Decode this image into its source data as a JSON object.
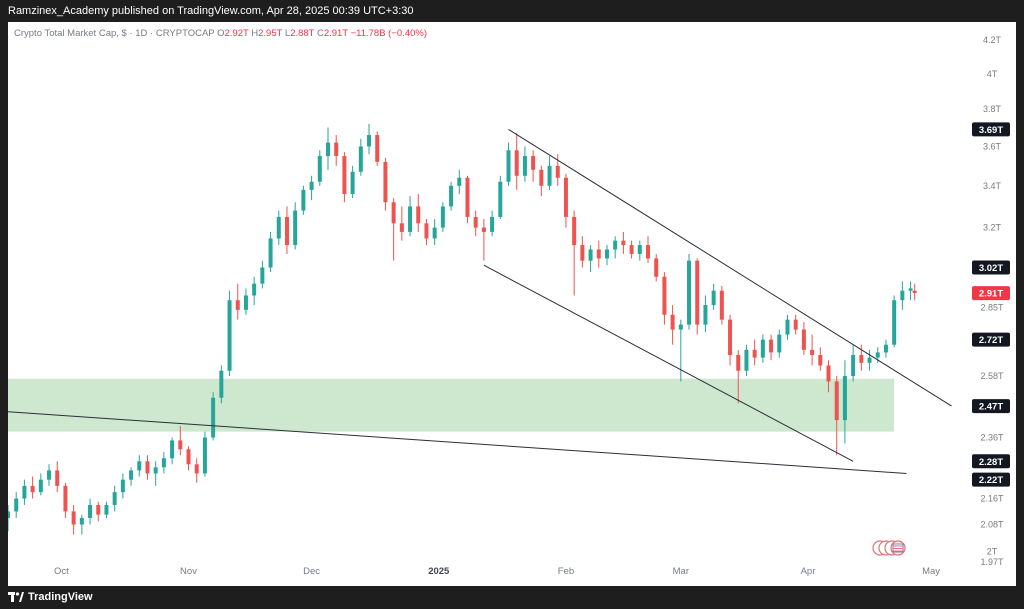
{
  "header": {
    "publisher_line": "Ramzinex_Academy published on TradingView.com, Apr 28, 2025 00:39 UTC+3:30"
  },
  "legend": {
    "symbol": "Crypto Total Market Cap, $ · 1D · CRYPTOCAP",
    "o_label": "O",
    "o_value": "2.92T",
    "h_label": "H",
    "h_value": "2.95T",
    "l_label": "L",
    "l_value": "2.88T",
    "c_label": "C",
    "c_value": "2.91T",
    "change": "−11.78B (−0.40%)"
  },
  "footer": {
    "brand": "TradingView"
  },
  "colors": {
    "up": "#26a69a",
    "down": "#ef5350",
    "zone": "#c8e6c9",
    "line": "#2a2e39",
    "axis_text": "#787b86",
    "price_tag_bg": "#131722",
    "last_price_bg": "#f23645"
  },
  "chart_data": {
    "type": "candlestick",
    "title": "Crypto Total Market Cap, $ · 1D · CRYPTOCAP",
    "y_scale": "log",
    "ylim": [
      1.97,
      4.25
    ],
    "y_ticks": [
      {
        "label": "4.2T",
        "value": 4.2
      },
      {
        "label": "4T",
        "value": 4.0
      },
      {
        "label": "3.8T",
        "value": 3.8
      },
      {
        "label": "3.6T",
        "value": 3.6
      },
      {
        "label": "3.4T",
        "value": 3.4
      },
      {
        "label": "3.2T",
        "value": 3.2
      },
      {
        "label": "2.85T",
        "value": 2.85
      },
      {
        "label": "2.58T",
        "value": 2.58
      },
      {
        "label": "2.36T",
        "value": 2.36
      },
      {
        "label": "2.16T",
        "value": 2.16
      },
      {
        "label": "2.08T",
        "value": 2.08
      },
      {
        "label": "2T",
        "value": 2.0
      },
      {
        "label": "1.97T",
        "value": 1.97
      }
    ],
    "price_tags": [
      {
        "label": "3.69T",
        "value": 3.69,
        "kind": "level"
      },
      {
        "label": "3.02T",
        "value": 3.02,
        "kind": "level"
      },
      {
        "label": "2.91T",
        "value": 2.91,
        "kind": "last"
      },
      {
        "label": "2.72T",
        "value": 2.72,
        "kind": "level"
      },
      {
        "label": "2.47T",
        "value": 2.47,
        "kind": "level"
      },
      {
        "label": "2.28T",
        "value": 2.28,
        "kind": "level"
      },
      {
        "label": "2.22T",
        "value": 2.22,
        "kind": "level"
      }
    ],
    "x_range": [
      "2024-09-18",
      "2025-05-10"
    ],
    "x_ticks": [
      {
        "label": "Oct",
        "date": "2024-10-01"
      },
      {
        "label": "Nov",
        "date": "2024-11-01"
      },
      {
        "label": "Dec",
        "date": "2024-12-01"
      },
      {
        "label": "2025",
        "date": "2025-01-01"
      },
      {
        "label": "Feb",
        "date": "2025-02-01"
      },
      {
        "label": "Mar",
        "date": "2025-03-01"
      },
      {
        "label": "Apr",
        "date": "2025-04-01"
      },
      {
        "label": "May",
        "date": "2025-05-01"
      }
    ],
    "zone": {
      "from_date": "2024-09-18",
      "to_date": "2025-04-22",
      "low": 2.38,
      "high": 2.57
    },
    "lines": [
      {
        "from": {
          "date": "2024-09-18",
          "value": 2.45
        },
        "to": {
          "date": "2025-04-25",
          "value": 2.24
        }
      },
      {
        "from": {
          "date": "2025-01-18",
          "value": 3.69
        },
        "to": {
          "date": "2025-05-06",
          "value": 2.47
        }
      },
      {
        "from": {
          "date": "2025-01-12",
          "value": 3.03
        },
        "to": {
          "date": "2025-04-12",
          "value": 2.28
        }
      }
    ],
    "candles": [
      {
        "date": "2024-09-18",
        "o": 2.1,
        "h": 2.14,
        "l": 2.06,
        "c": 2.12
      },
      {
        "date": "2024-09-20",
        "o": 2.12,
        "h": 2.18,
        "l": 2.1,
        "c": 2.16
      },
      {
        "date": "2024-09-22",
        "o": 2.16,
        "h": 2.22,
        "l": 2.14,
        "c": 2.2
      },
      {
        "date": "2024-09-24",
        "o": 2.2,
        "h": 2.23,
        "l": 2.16,
        "c": 2.18
      },
      {
        "date": "2024-09-26",
        "o": 2.18,
        "h": 2.24,
        "l": 2.17,
        "c": 2.22
      },
      {
        "date": "2024-09-28",
        "o": 2.22,
        "h": 2.27,
        "l": 2.2,
        "c": 2.25
      },
      {
        "date": "2024-09-30",
        "o": 2.25,
        "h": 2.28,
        "l": 2.18,
        "c": 2.2
      },
      {
        "date": "2024-10-02",
        "o": 2.2,
        "h": 2.21,
        "l": 2.1,
        "c": 2.12
      },
      {
        "date": "2024-10-04",
        "o": 2.12,
        "h": 2.14,
        "l": 2.05,
        "c": 2.08
      },
      {
        "date": "2024-10-06",
        "o": 2.08,
        "h": 2.11,
        "l": 2.05,
        "c": 2.1
      },
      {
        "date": "2024-10-08",
        "o": 2.1,
        "h": 2.16,
        "l": 2.08,
        "c": 2.14
      },
      {
        "date": "2024-10-10",
        "o": 2.14,
        "h": 2.15,
        "l": 2.09,
        "c": 2.11
      },
      {
        "date": "2024-10-12",
        "o": 2.11,
        "h": 2.15,
        "l": 2.1,
        "c": 2.14
      },
      {
        "date": "2024-10-14",
        "o": 2.14,
        "h": 2.2,
        "l": 2.12,
        "c": 2.18
      },
      {
        "date": "2024-10-16",
        "o": 2.18,
        "h": 2.24,
        "l": 2.16,
        "c": 2.22
      },
      {
        "date": "2024-10-18",
        "o": 2.22,
        "h": 2.26,
        "l": 2.2,
        "c": 2.25
      },
      {
        "date": "2024-10-20",
        "o": 2.25,
        "h": 2.3,
        "l": 2.23,
        "c": 2.28
      },
      {
        "date": "2024-10-22",
        "o": 2.28,
        "h": 2.3,
        "l": 2.22,
        "c": 2.24
      },
      {
        "date": "2024-10-24",
        "o": 2.24,
        "h": 2.28,
        "l": 2.2,
        "c": 2.26
      },
      {
        "date": "2024-10-26",
        "o": 2.26,
        "h": 2.31,
        "l": 2.24,
        "c": 2.29
      },
      {
        "date": "2024-10-28",
        "o": 2.29,
        "h": 2.36,
        "l": 2.27,
        "c": 2.35
      },
      {
        "date": "2024-10-30",
        "o": 2.35,
        "h": 2.4,
        "l": 2.3,
        "c": 2.32
      },
      {
        "date": "2024-11-01",
        "o": 2.32,
        "h": 2.33,
        "l": 2.25,
        "c": 2.27
      },
      {
        "date": "2024-11-03",
        "o": 2.27,
        "h": 2.29,
        "l": 2.21,
        "c": 2.24
      },
      {
        "date": "2024-11-05",
        "o": 2.24,
        "h": 2.38,
        "l": 2.23,
        "c": 2.36
      },
      {
        "date": "2024-11-07",
        "o": 2.36,
        "h": 2.52,
        "l": 2.35,
        "c": 2.5
      },
      {
        "date": "2024-11-09",
        "o": 2.5,
        "h": 2.62,
        "l": 2.48,
        "c": 2.6
      },
      {
        "date": "2024-11-11",
        "o": 2.6,
        "h": 2.92,
        "l": 2.58,
        "c": 2.88
      },
      {
        "date": "2024-11-13",
        "o": 2.88,
        "h": 2.95,
        "l": 2.8,
        "c": 2.84
      },
      {
        "date": "2024-11-15",
        "o": 2.84,
        "h": 2.93,
        "l": 2.82,
        "c": 2.9
      },
      {
        "date": "2024-11-17",
        "o": 2.9,
        "h": 2.98,
        "l": 2.86,
        "c": 2.95
      },
      {
        "date": "2024-11-19",
        "o": 2.95,
        "h": 3.05,
        "l": 2.93,
        "c": 3.02
      },
      {
        "date": "2024-11-21",
        "o": 3.02,
        "h": 3.18,
        "l": 3.0,
        "c": 3.15
      },
      {
        "date": "2024-11-23",
        "o": 3.15,
        "h": 3.28,
        "l": 3.12,
        "c": 3.25
      },
      {
        "date": "2024-11-25",
        "o": 3.25,
        "h": 3.3,
        "l": 3.08,
        "c": 3.12
      },
      {
        "date": "2024-11-27",
        "o": 3.12,
        "h": 3.32,
        "l": 3.1,
        "c": 3.28
      },
      {
        "date": "2024-11-29",
        "o": 3.28,
        "h": 3.4,
        "l": 3.26,
        "c": 3.38
      },
      {
        "date": "2024-12-01",
        "o": 3.38,
        "h": 3.45,
        "l": 3.33,
        "c": 3.42
      },
      {
        "date": "2024-12-03",
        "o": 3.42,
        "h": 3.58,
        "l": 3.4,
        "c": 3.55
      },
      {
        "date": "2024-12-05",
        "o": 3.55,
        "h": 3.7,
        "l": 3.48,
        "c": 3.62
      },
      {
        "date": "2024-12-07",
        "o": 3.62,
        "h": 3.66,
        "l": 3.5,
        "c": 3.55
      },
      {
        "date": "2024-12-09",
        "o": 3.55,
        "h": 3.57,
        "l": 3.32,
        "c": 3.36
      },
      {
        "date": "2024-12-11",
        "o": 3.36,
        "h": 3.5,
        "l": 3.34,
        "c": 3.47
      },
      {
        "date": "2024-12-13",
        "o": 3.47,
        "h": 3.64,
        "l": 3.45,
        "c": 3.6
      },
      {
        "date": "2024-12-15",
        "o": 3.6,
        "h": 3.72,
        "l": 3.56,
        "c": 3.66
      },
      {
        "date": "2024-12-17",
        "o": 3.66,
        "h": 3.68,
        "l": 3.5,
        "c": 3.52
      },
      {
        "date": "2024-12-19",
        "o": 3.52,
        "h": 3.54,
        "l": 3.28,
        "c": 3.32
      },
      {
        "date": "2024-12-21",
        "o": 3.32,
        "h": 3.34,
        "l": 3.05,
        "c": 3.22
      },
      {
        "date": "2024-12-23",
        "o": 3.22,
        "h": 3.3,
        "l": 3.14,
        "c": 3.18
      },
      {
        "date": "2024-12-25",
        "o": 3.18,
        "h": 3.35,
        "l": 3.16,
        "c": 3.3
      },
      {
        "date": "2024-12-27",
        "o": 3.3,
        "h": 3.36,
        "l": 3.18,
        "c": 3.22
      },
      {
        "date": "2024-12-29",
        "o": 3.22,
        "h": 3.24,
        "l": 3.12,
        "c": 3.15
      },
      {
        "date": "2024-12-31",
        "o": 3.15,
        "h": 3.24,
        "l": 3.12,
        "c": 3.2
      },
      {
        "date": "2025-01-02",
        "o": 3.2,
        "h": 3.32,
        "l": 3.18,
        "c": 3.3
      },
      {
        "date": "2025-01-04",
        "o": 3.3,
        "h": 3.42,
        "l": 3.28,
        "c": 3.4
      },
      {
        "date": "2025-01-06",
        "o": 3.4,
        "h": 3.48,
        "l": 3.36,
        "c": 3.44
      },
      {
        "date": "2025-01-08",
        "o": 3.44,
        "h": 3.45,
        "l": 3.22,
        "c": 3.25
      },
      {
        "date": "2025-01-10",
        "o": 3.25,
        "h": 3.28,
        "l": 3.16,
        "c": 3.2
      },
      {
        "date": "2025-01-12",
        "o": 3.2,
        "h": 3.24,
        "l": 3.05,
        "c": 3.18
      },
      {
        "date": "2025-01-14",
        "o": 3.18,
        "h": 3.28,
        "l": 3.16,
        "c": 3.25
      },
      {
        "date": "2025-01-16",
        "o": 3.25,
        "h": 3.45,
        "l": 3.24,
        "c": 3.42
      },
      {
        "date": "2025-01-18",
        "o": 3.42,
        "h": 3.62,
        "l": 3.4,
        "c": 3.58
      },
      {
        "date": "2025-01-20",
        "o": 3.58,
        "h": 3.67,
        "l": 3.38,
        "c": 3.45
      },
      {
        "date": "2025-01-22",
        "o": 3.45,
        "h": 3.6,
        "l": 3.42,
        "c": 3.55
      },
      {
        "date": "2025-01-24",
        "o": 3.55,
        "h": 3.58,
        "l": 3.42,
        "c": 3.48
      },
      {
        "date": "2025-01-26",
        "o": 3.48,
        "h": 3.5,
        "l": 3.35,
        "c": 3.4
      },
      {
        "date": "2025-01-28",
        "o": 3.4,
        "h": 3.55,
        "l": 3.38,
        "c": 3.5
      },
      {
        "date": "2025-01-30",
        "o": 3.5,
        "h": 3.56,
        "l": 3.4,
        "c": 3.44
      },
      {
        "date": "2025-02-01",
        "o": 3.44,
        "h": 3.46,
        "l": 3.2,
        "c": 3.25
      },
      {
        "date": "2025-02-03",
        "o": 3.25,
        "h": 3.28,
        "l": 2.9,
        "c": 3.12
      },
      {
        "date": "2025-02-05",
        "o": 3.12,
        "h": 3.16,
        "l": 3.02,
        "c": 3.05
      },
      {
        "date": "2025-02-07",
        "o": 3.05,
        "h": 3.12,
        "l": 3.0,
        "c": 3.1
      },
      {
        "date": "2025-02-09",
        "o": 3.1,
        "h": 3.14,
        "l": 3.02,
        "c": 3.06
      },
      {
        "date": "2025-02-11",
        "o": 3.06,
        "h": 3.12,
        "l": 3.03,
        "c": 3.1
      },
      {
        "date": "2025-02-13",
        "o": 3.1,
        "h": 3.16,
        "l": 3.06,
        "c": 3.14
      },
      {
        "date": "2025-02-15",
        "o": 3.14,
        "h": 3.18,
        "l": 3.08,
        "c": 3.12
      },
      {
        "date": "2025-02-17",
        "o": 3.12,
        "h": 3.14,
        "l": 3.06,
        "c": 3.08
      },
      {
        "date": "2025-02-19",
        "o": 3.08,
        "h": 3.14,
        "l": 3.05,
        "c": 3.12
      },
      {
        "date": "2025-02-21",
        "o": 3.12,
        "h": 3.16,
        "l": 3.04,
        "c": 3.06
      },
      {
        "date": "2025-02-23",
        "o": 3.06,
        "h": 3.08,
        "l": 2.96,
        "c": 2.98
      },
      {
        "date": "2025-02-25",
        "o": 2.98,
        "h": 3.0,
        "l": 2.78,
        "c": 2.82
      },
      {
        "date": "2025-02-27",
        "o": 2.82,
        "h": 2.86,
        "l": 2.7,
        "c": 2.76
      },
      {
        "date": "2025-03-01",
        "o": 2.76,
        "h": 2.8,
        "l": 2.56,
        "c": 2.78
      },
      {
        "date": "2025-03-03",
        "o": 2.78,
        "h": 3.08,
        "l": 2.76,
        "c": 3.05
      },
      {
        "date": "2025-03-05",
        "o": 3.05,
        "h": 3.06,
        "l": 2.74,
        "c": 2.78
      },
      {
        "date": "2025-03-07",
        "o": 2.78,
        "h": 2.9,
        "l": 2.75,
        "c": 2.86
      },
      {
        "date": "2025-03-09",
        "o": 2.86,
        "h": 2.95,
        "l": 2.84,
        "c": 2.92
      },
      {
        "date": "2025-03-11",
        "o": 2.92,
        "h": 2.94,
        "l": 2.78,
        "c": 2.8
      },
      {
        "date": "2025-03-13",
        "o": 2.8,
        "h": 2.82,
        "l": 2.62,
        "c": 2.66
      },
      {
        "date": "2025-03-15",
        "o": 2.66,
        "h": 2.68,
        "l": 2.48,
        "c": 2.6
      },
      {
        "date": "2025-03-17",
        "o": 2.6,
        "h": 2.7,
        "l": 2.58,
        "c": 2.68
      },
      {
        "date": "2025-03-19",
        "o": 2.68,
        "h": 2.72,
        "l": 2.62,
        "c": 2.65
      },
      {
        "date": "2025-03-21",
        "o": 2.65,
        "h": 2.74,
        "l": 2.63,
        "c": 2.72
      },
      {
        "date": "2025-03-23",
        "o": 2.72,
        "h": 2.74,
        "l": 2.64,
        "c": 2.67
      },
      {
        "date": "2025-03-25",
        "o": 2.67,
        "h": 2.76,
        "l": 2.65,
        "c": 2.74
      },
      {
        "date": "2025-03-27",
        "o": 2.74,
        "h": 2.82,
        "l": 2.72,
        "c": 2.8
      },
      {
        "date": "2025-03-29",
        "o": 2.8,
        "h": 2.82,
        "l": 2.74,
        "c": 2.76
      },
      {
        "date": "2025-03-31",
        "o": 2.76,
        "h": 2.79,
        "l": 2.66,
        "c": 2.68
      },
      {
        "date": "2025-04-02",
        "o": 2.68,
        "h": 2.74,
        "l": 2.62,
        "c": 2.66
      },
      {
        "date": "2025-04-04",
        "o": 2.66,
        "h": 2.69,
        "l": 2.6,
        "c": 2.62
      },
      {
        "date": "2025-04-06",
        "o": 2.62,
        "h": 2.64,
        "l": 2.52,
        "c": 2.56
      },
      {
        "date": "2025-04-08",
        "o": 2.56,
        "h": 2.58,
        "l": 2.3,
        "c": 2.42
      },
      {
        "date": "2025-04-10",
        "o": 2.42,
        "h": 2.64,
        "l": 2.34,
        "c": 2.58
      },
      {
        "date": "2025-04-12",
        "o": 2.58,
        "h": 2.7,
        "l": 2.56,
        "c": 2.66
      },
      {
        "date": "2025-04-14",
        "o": 2.66,
        "h": 2.7,
        "l": 2.6,
        "c": 2.63
      },
      {
        "date": "2025-04-16",
        "o": 2.63,
        "h": 2.68,
        "l": 2.6,
        "c": 2.65
      },
      {
        "date": "2025-04-18",
        "o": 2.65,
        "h": 2.69,
        "l": 2.63,
        "c": 2.67
      },
      {
        "date": "2025-04-20",
        "o": 2.67,
        "h": 2.72,
        "l": 2.65,
        "c": 2.7
      },
      {
        "date": "2025-04-22",
        "o": 2.7,
        "h": 2.9,
        "l": 2.69,
        "c": 2.88
      },
      {
        "date": "2025-04-24",
        "o": 2.88,
        "h": 2.96,
        "l": 2.84,
        "c": 2.92
      },
      {
        "date": "2025-04-26",
        "o": 2.92,
        "h": 2.96,
        "l": 2.88,
        "c": 2.93
      },
      {
        "date": "2025-04-27",
        "o": 2.92,
        "h": 2.95,
        "l": 2.88,
        "c": 2.91
      }
    ]
  }
}
